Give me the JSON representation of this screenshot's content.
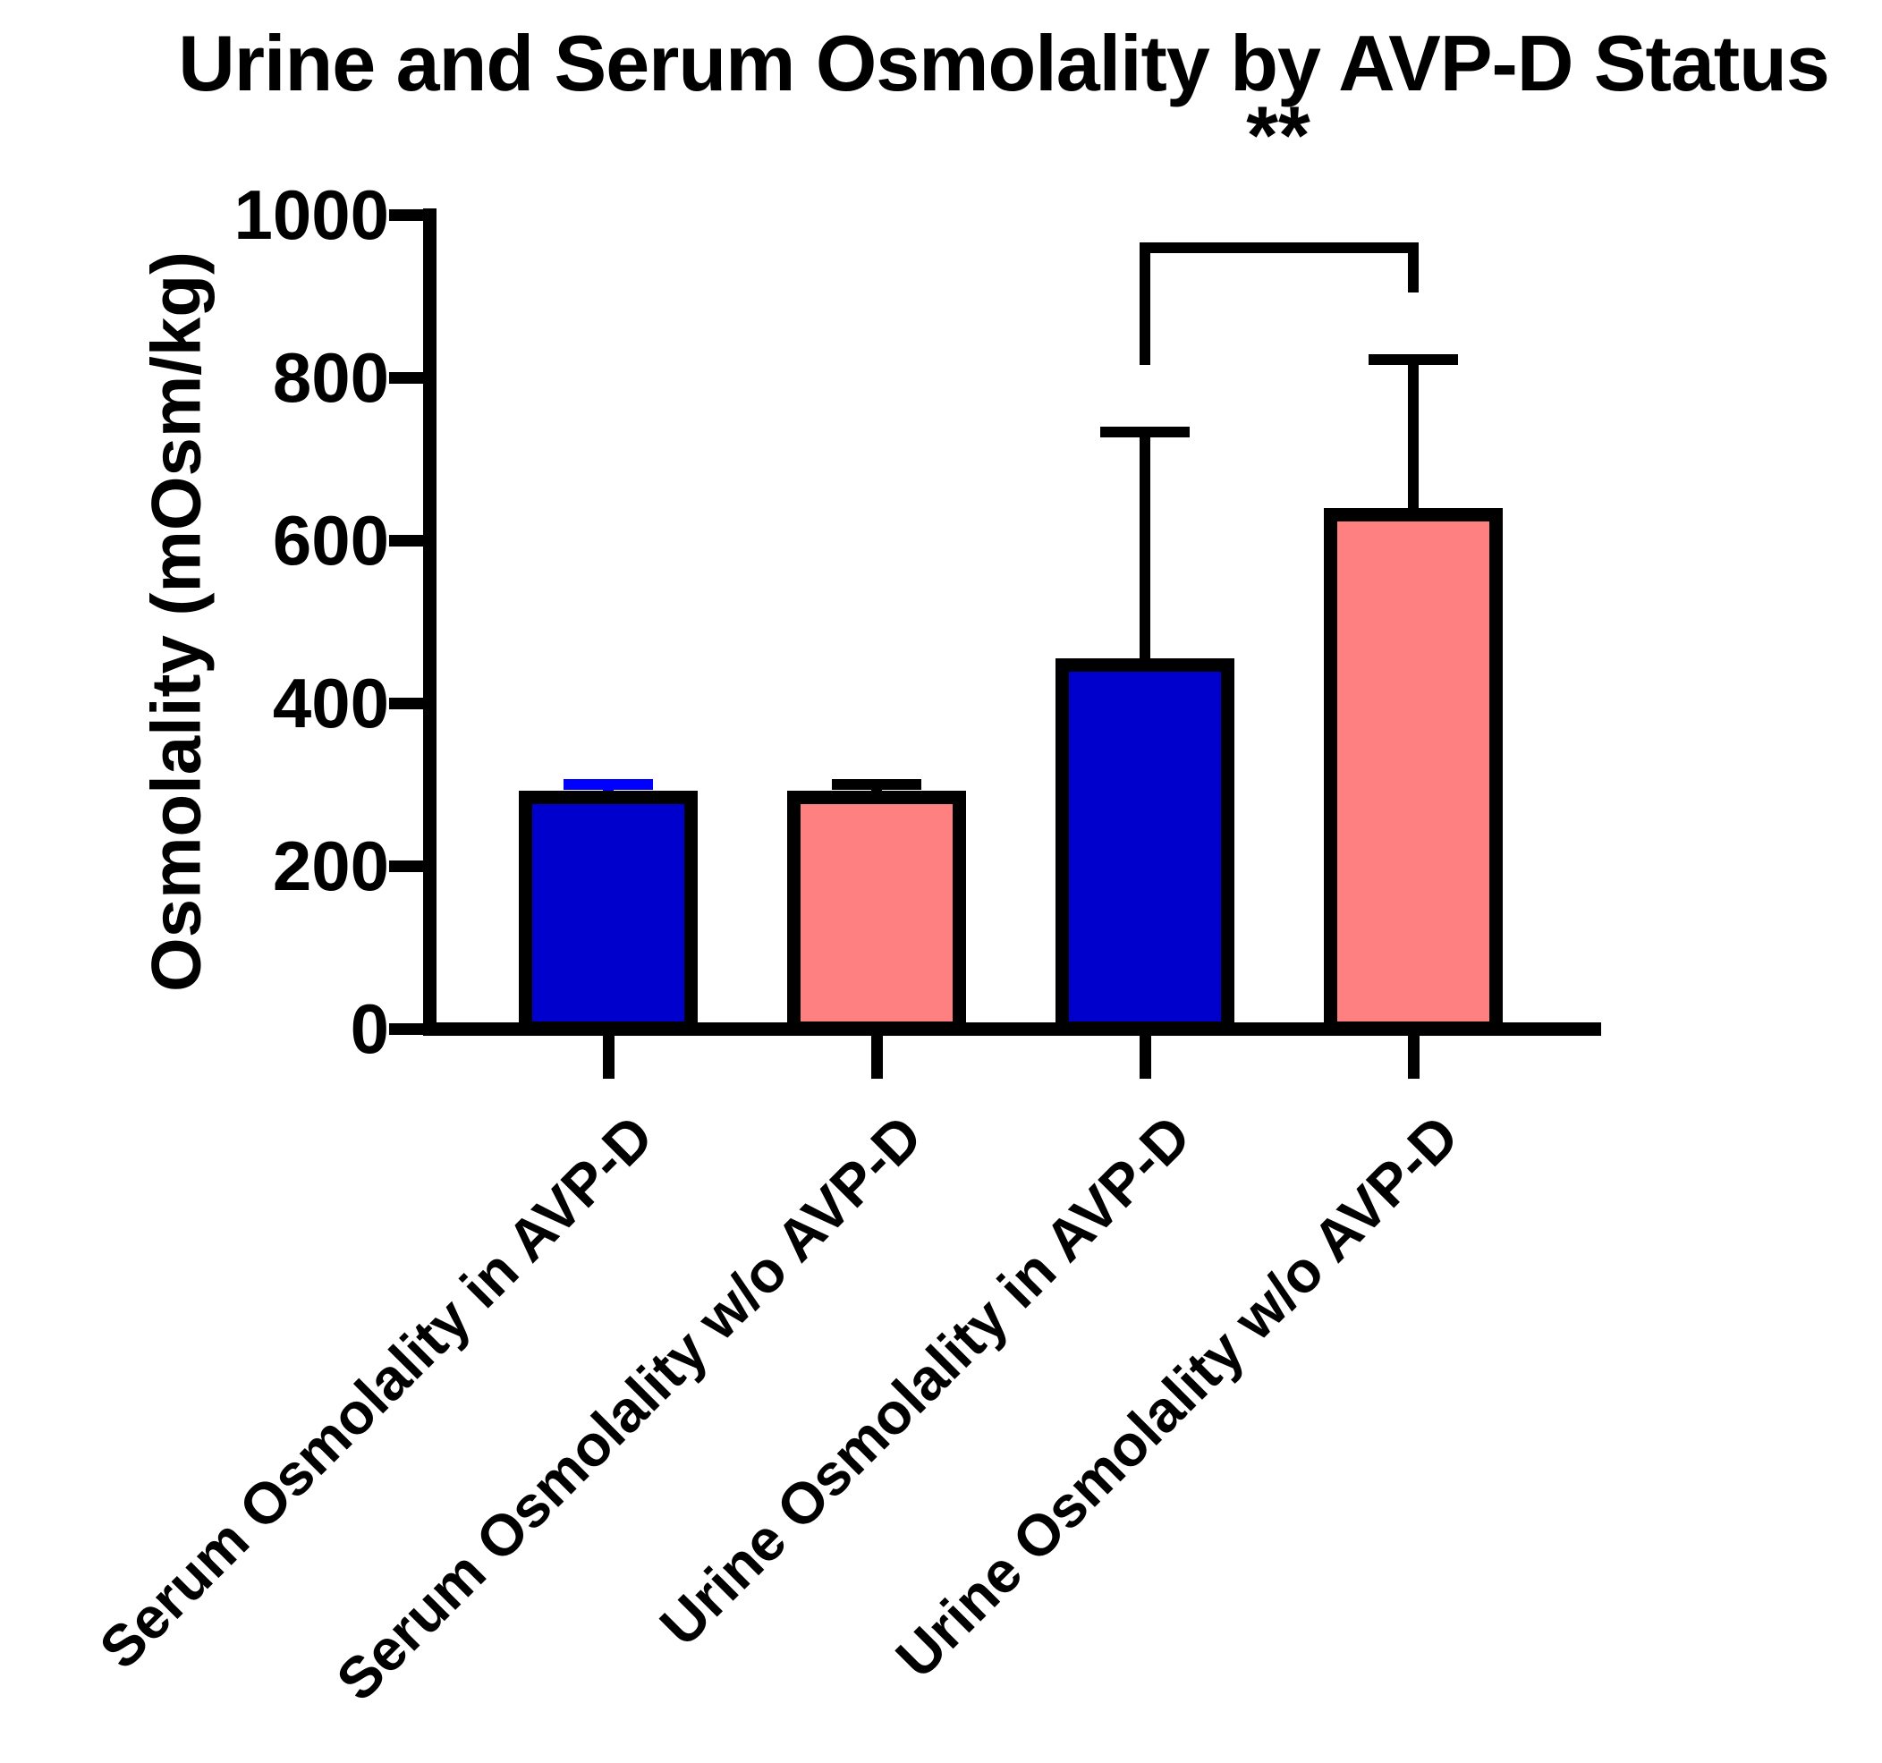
{
  "title": "Urine and Serum Osmolality by AVP-D Status",
  "significance_label": "**",
  "colors": {
    "background": "#FFFFFF",
    "axis": "#000000",
    "bar_border": "#000000",
    "blue_fill": "#0000CD",
    "salmon_fill": "#FF8080",
    "blue_error": "#0000FF",
    "black_error": "#000000"
  },
  "chart_data": {
    "type": "bar",
    "title": "Urine and Serum Osmolality by AVP-D Status",
    "xlabel": "",
    "ylabel": "Osmolality (mOsm/kg)",
    "ylim": [
      0,
      1000
    ],
    "yticks": [
      0,
      200,
      400,
      600,
      800,
      1000
    ],
    "grid": false,
    "legend_position": "none",
    "categories": [
      "Serum Osmolality in AVP-D",
      "Serum Osmolality w/o AVP-D",
      "Urine Osmolality in AVP-D",
      "Urine Osmolality w/o AVP-D"
    ],
    "values": [
      292,
      292,
      455,
      640
    ],
    "error_tops": [
      300,
      300,
      733,
      822
    ],
    "errors_upper_sd": [
      8,
      8,
      278,
      182
    ],
    "bar_colors": [
      "#0000CD",
      "#FF8080",
      "#0000CD",
      "#FF8080"
    ],
    "error_bar_colors": [
      "#0000FF",
      "#000000",
      "#000000",
      "#000000"
    ],
    "significance": {
      "label": "**",
      "from_category_index": 2,
      "to_category_index": 3
    }
  }
}
